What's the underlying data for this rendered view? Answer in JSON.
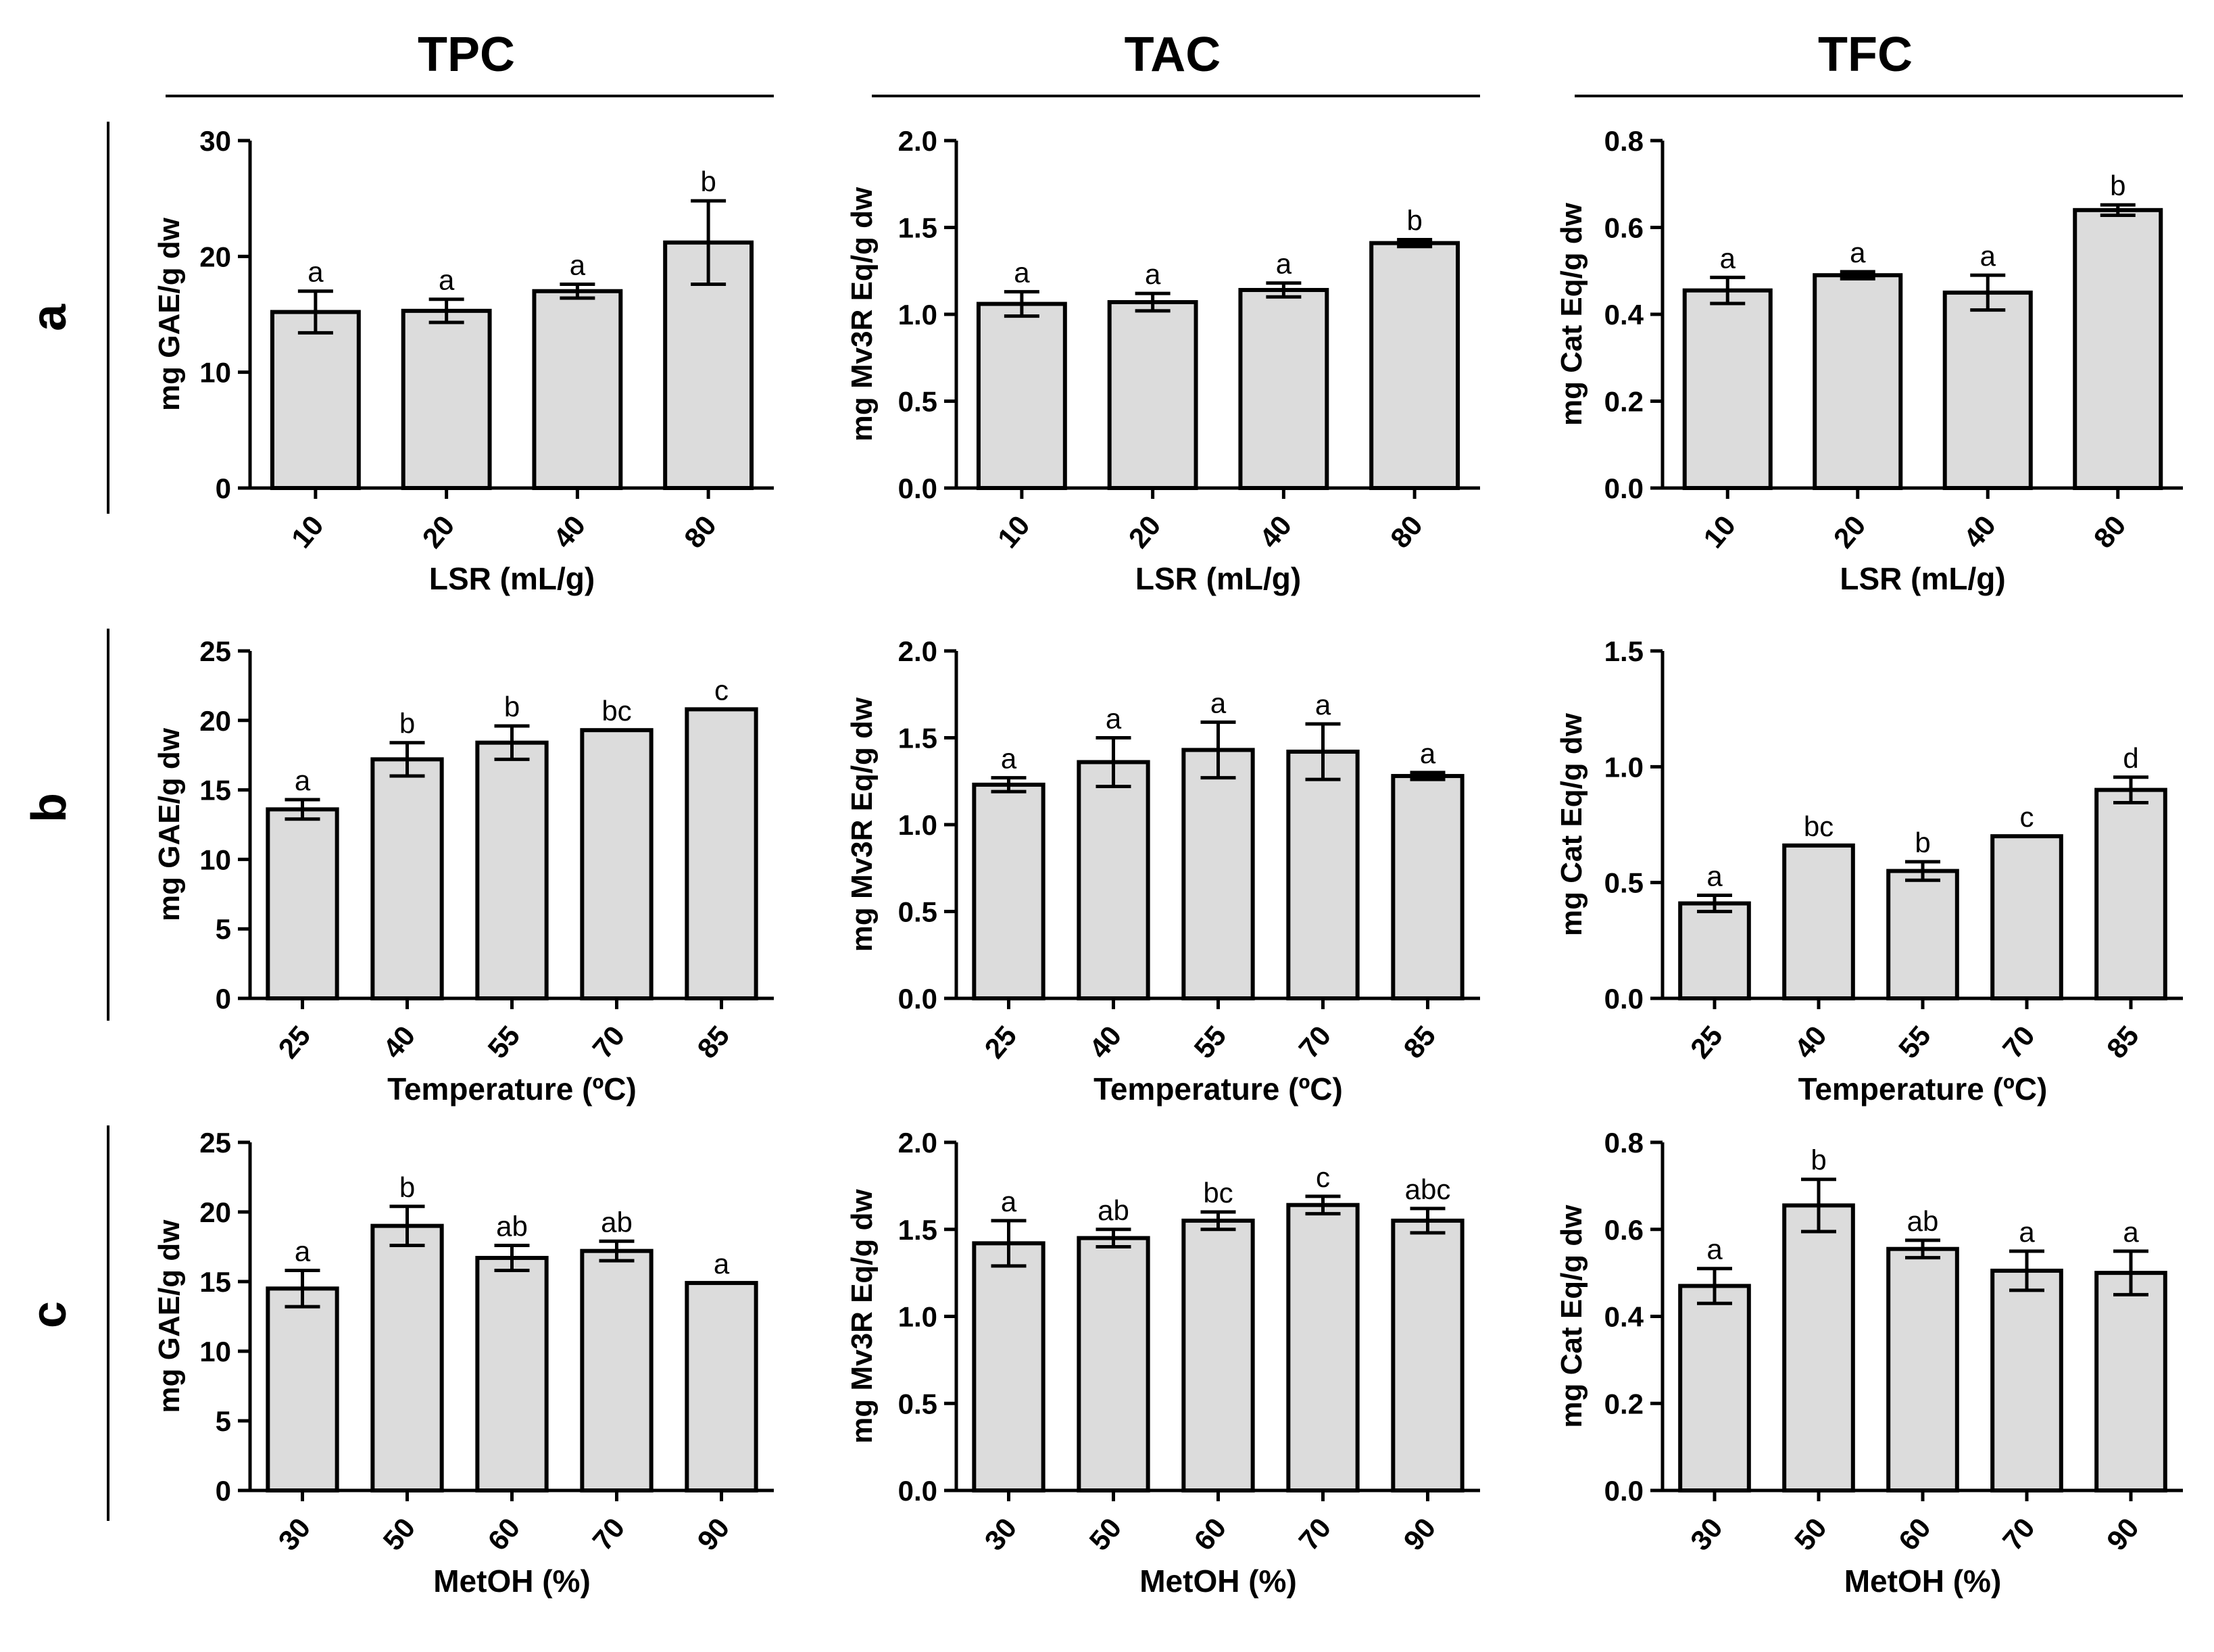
{
  "column_titles": [
    "TPC",
    "TAC",
    "TFC"
  ],
  "row_labels": [
    "a",
    "b",
    "c"
  ],
  "chart_data": [
    {
      "type": "bar",
      "row": "a",
      "column": "TPC",
      "xlabel": "LSR (mL/g)",
      "ylabel": "mg GAE/g dw",
      "ylim": [
        0,
        30
      ],
      "yticks": [
        "0",
        "10",
        "20",
        "30"
      ],
      "categories": [
        "10",
        "20",
        "40",
        "80"
      ],
      "values": [
        15.2,
        15.3,
        17.0,
        21.2
      ],
      "errors": [
        1.8,
        1.0,
        0.6,
        3.6
      ],
      "letters": [
        "a",
        "a",
        "a",
        "b"
      ]
    },
    {
      "type": "bar",
      "row": "a",
      "column": "TAC",
      "xlabel": "LSR (mL/g)",
      "ylabel": "mg Mv3R Eq/g dw",
      "ylim": [
        0,
        2.0
      ],
      "yticks": [
        "0.0",
        "0.5",
        "1.0",
        "1.5",
        "2.0"
      ],
      "categories": [
        "10",
        "20",
        "40",
        "80"
      ],
      "values": [
        1.06,
        1.07,
        1.14,
        1.41
      ],
      "errors": [
        0.07,
        0.05,
        0.04,
        0.02
      ],
      "letters": [
        "a",
        "a",
        "a",
        "b"
      ]
    },
    {
      "type": "bar",
      "row": "a",
      "column": "TFC",
      "xlabel": "LSR (mL/g)",
      "ylabel": "mg Cat Eq/g dw",
      "ylim": [
        0,
        0.8
      ],
      "yticks": [
        "0.0",
        "0.2",
        "0.4",
        "0.6",
        "0.8"
      ],
      "categories": [
        "10",
        "20",
        "40",
        "80"
      ],
      "values": [
        0.455,
        0.49,
        0.45,
        0.64
      ],
      "errors": [
        0.03,
        0.008,
        0.04,
        0.012
      ],
      "letters": [
        "a",
        "a",
        "a",
        "b"
      ]
    },
    {
      "type": "bar",
      "row": "b",
      "column": "TPC",
      "xlabel": "Temperature (ºC)",
      "ylabel": "mg GAE/g dw",
      "ylim": [
        0,
        25
      ],
      "yticks": [
        "0",
        "5",
        "10",
        "15",
        "20",
        "25"
      ],
      "categories": [
        "25",
        "40",
        "55",
        "70",
        "85"
      ],
      "values": [
        13.6,
        17.2,
        18.4,
        19.3,
        20.8
      ],
      "errors": [
        0.7,
        1.2,
        1.2,
        0.0,
        0.0
      ],
      "letters": [
        "a",
        "b",
        "b",
        "bc",
        "c"
      ]
    },
    {
      "type": "bar",
      "row": "b",
      "column": "TAC",
      "xlabel": "Temperature (ºC)",
      "ylabel": "mg Mv3R Eq/g dw",
      "ylim": [
        0,
        2.0
      ],
      "yticks": [
        "0.0",
        "0.5",
        "1.0",
        "1.5",
        "2.0"
      ],
      "categories": [
        "25",
        "40",
        "55",
        "70",
        "85"
      ],
      "values": [
        1.23,
        1.36,
        1.43,
        1.42,
        1.28
      ],
      "errors": [
        0.04,
        0.14,
        0.16,
        0.16,
        0.02
      ],
      "letters": [
        "a",
        "a",
        "a",
        "a",
        "a"
      ]
    },
    {
      "type": "bar",
      "row": "b",
      "column": "TFC",
      "xlabel": "Temperature (ºC)",
      "ylabel": "mg Cat Eq/g dw",
      "ylim": [
        0,
        1.5
      ],
      "yticks": [
        "0.0",
        "0.5",
        "1.0",
        "1.5"
      ],
      "categories": [
        "25",
        "40",
        "55",
        "70",
        "85"
      ],
      "values": [
        0.41,
        0.66,
        0.55,
        0.7,
        0.9
      ],
      "errors": [
        0.035,
        0.0,
        0.04,
        0.0,
        0.055
      ],
      "letters": [
        "a",
        "bc",
        "b",
        "c",
        "d"
      ]
    },
    {
      "type": "bar",
      "row": "c",
      "column": "TPC",
      "xlabel": "MetOH (%)",
      "ylabel": "mg GAE/g dw",
      "ylim": [
        0,
        25
      ],
      "yticks": [
        "0",
        "5",
        "10",
        "15",
        "20",
        "25"
      ],
      "categories": [
        "30",
        "50",
        "60",
        "70",
        "90"
      ],
      "values": [
        14.5,
        19.0,
        16.7,
        17.2,
        14.9
      ],
      "errors": [
        1.3,
        1.4,
        0.9,
        0.7,
        0.0
      ],
      "letters": [
        "a",
        "b",
        "ab",
        "ab",
        "a"
      ]
    },
    {
      "type": "bar",
      "row": "c",
      "column": "TAC",
      "xlabel": "MetOH (%)",
      "ylabel": "mg Mv3R Eq/g dw",
      "ylim": [
        0,
        2.0
      ],
      "yticks": [
        "0.0",
        "0.5",
        "1.0",
        "1.5",
        "2.0"
      ],
      "categories": [
        "30",
        "50",
        "60",
        "70",
        "90"
      ],
      "values": [
        1.42,
        1.45,
        1.55,
        1.64,
        1.55
      ],
      "errors": [
        0.13,
        0.05,
        0.05,
        0.05,
        0.07
      ],
      "letters": [
        "a",
        "ab",
        "bc",
        "c",
        "abc"
      ]
    },
    {
      "type": "bar",
      "row": "c",
      "column": "TFC",
      "xlabel": "MetOH (%)",
      "ylabel": "mg Cat Eq/g dw",
      "ylim": [
        0,
        0.8
      ],
      "yticks": [
        "0.0",
        "0.2",
        "0.4",
        "0.6",
        "0.8"
      ],
      "categories": [
        "30",
        "50",
        "60",
        "70",
        "90"
      ],
      "values": [
        0.47,
        0.655,
        0.555,
        0.505,
        0.5
      ],
      "errors": [
        0.04,
        0.06,
        0.02,
        0.045,
        0.05
      ],
      "letters": [
        "a",
        "b",
        "ab",
        "a",
        "a"
      ]
    }
  ]
}
